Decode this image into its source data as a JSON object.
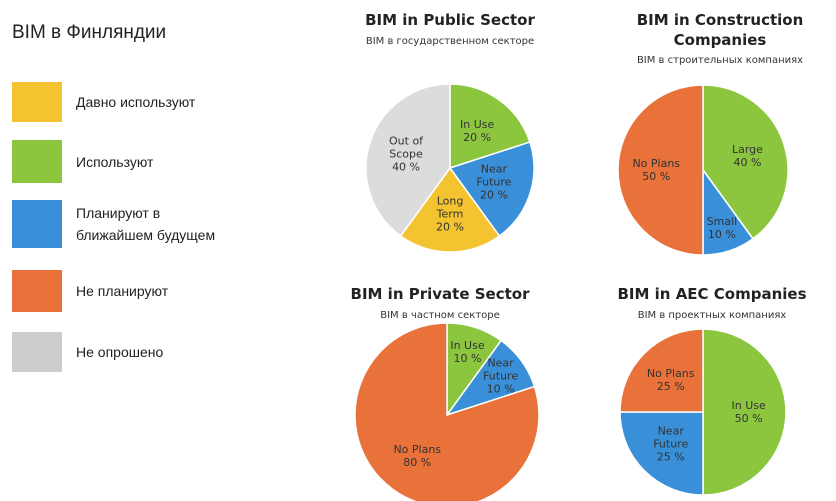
{
  "title": "BIM в Финляндии",
  "legend": [
    {
      "label": "Давно используют",
      "color": "#f4c430"
    },
    {
      "label": "Используют",
      "color": "#8cc63f"
    },
    {
      "label": "Планируют в ближайшем будущем",
      "color": "#3a8fd9"
    },
    {
      "label": "Не планируют",
      "color": "#e8723a"
    },
    {
      "label": "Не опрошено",
      "color": "#cccccc"
    }
  ],
  "chart_data": [
    {
      "type": "pie",
      "title": "BIM in Public Sector",
      "subtitle": "BIM в государственном секторе",
      "categories": [
        "In Use",
        "Near Future",
        "Long Term",
        "Out of Scope"
      ],
      "values": [
        20,
        20,
        20,
        40
      ],
      "value_labels": [
        "20 %",
        "20 %",
        "20 %",
        "40 %"
      ],
      "colors": [
        "#8cc63f",
        "#3a8fd9",
        "#f4c430",
        "#dcdcdc"
      ]
    },
    {
      "type": "pie",
      "title": "BIM in Construction Companies",
      "subtitle": "BIM в строительных компаниях",
      "categories": [
        "Large",
        "Small",
        "No Plans"
      ],
      "values": [
        40,
        10,
        50
      ],
      "value_labels": [
        "40 %",
        "10 %",
        "50 %"
      ],
      "colors": [
        "#8cc63f",
        "#3a8fd9",
        "#e8723a"
      ]
    },
    {
      "type": "pie",
      "title": "BIM in Private Sector",
      "subtitle": "BIM в частном секторе",
      "categories": [
        "In Use",
        "Near Future",
        "No Plans"
      ],
      "values": [
        10,
        10,
        80
      ],
      "value_labels": [
        "10 %",
        "10 %",
        "80 %"
      ],
      "colors": [
        "#8cc63f",
        "#3a8fd9",
        "#e8723a"
      ]
    },
    {
      "type": "pie",
      "title": "BIM in AEC Companies",
      "subtitle": "BIM в проектных компаниях",
      "categories": [
        "In Use",
        "Near Future",
        "No Plans"
      ],
      "values": [
        50,
        25,
        25
      ],
      "value_labels": [
        "50 %",
        "25 %",
        "25 %"
      ],
      "colors": [
        "#8cc63f",
        "#3a8fd9",
        "#e8723a"
      ]
    }
  ]
}
